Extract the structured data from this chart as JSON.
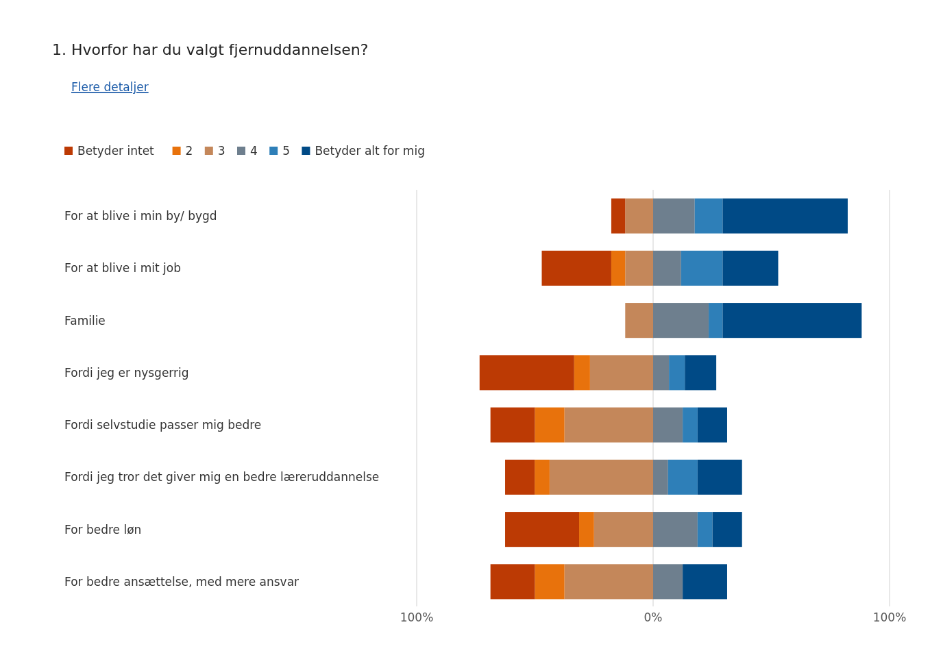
{
  "chart_data": {
    "type": "bar",
    "orientation": "horizontal",
    "stacked": true,
    "title": "1.  Hvorfor har du valgt fjernuddannelsen?",
    "annotations": [
      "Flere detaljer"
    ],
    "categories": [
      "For at blive i min by/ bygd",
      "For at blive i mit job",
      "Familie",
      "Fordi jeg er nysgerrig",
      "Fordi selvstudie passer mig bedre",
      "Fordi jeg tror det giver mig en bedre læreruddannelse",
      "For bedre løn",
      "For bedre ansættelse, med mere ansvar"
    ],
    "series": [
      {
        "name": "3",
        "color": "#c4875a",
        "values": [
          -11.8,
          -11.8,
          -11.8,
          -26.7,
          -37.5,
          -43.8,
          -25,
          -37.5
        ]
      },
      {
        "name": "2",
        "color": "#e8720c",
        "values": [
          0,
          -5.9,
          0,
          -6.7,
          -12.5,
          -6.3,
          -6.3,
          -12.5
        ]
      },
      {
        "name": "Betyder intet",
        "color": "#bc3a04",
        "values": [
          -5.9,
          -29.4,
          0,
          -40,
          -18.8,
          -12.5,
          -31.3,
          -18.8
        ]
      },
      {
        "name": "4",
        "color": "#6e7f8e",
        "values": [
          17.6,
          11.8,
          23.5,
          6.7,
          12.5,
          6.3,
          18.8,
          12.5
        ]
      },
      {
        "name": "5",
        "color": "#2e7fb8",
        "values": [
          11.8,
          17.6,
          5.9,
          6.7,
          6.3,
          12.5,
          6.3,
          0
        ]
      },
      {
        "name": "Betyder alt for mig",
        "color": "#004a86",
        "values": [
          52.9,
          23.5,
          58.8,
          13.3,
          12.5,
          18.8,
          12.5,
          18.8
        ]
      }
    ],
    "xlim": [
      -100,
      100
    ],
    "xticks": [
      {
        "value": -100,
        "label": "100%"
      },
      {
        "value": 0,
        "label": "0%"
      },
      {
        "value": 100,
        "label": "100%"
      }
    ],
    "grid": "x",
    "legend": "top left"
  }
}
